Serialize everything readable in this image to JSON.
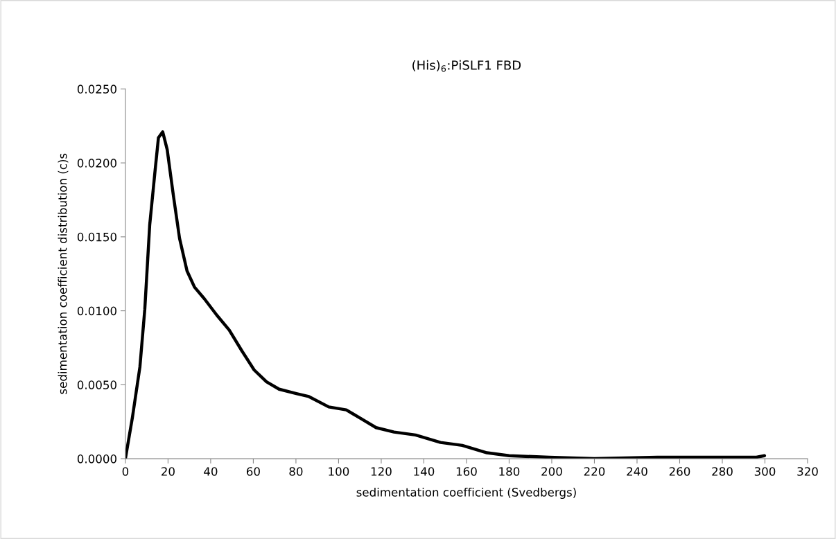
{
  "chart_data": {
    "type": "line",
    "title": "(His)$_{6}$:PiSLF1 FBD",
    "xlabel": "sedimentation coefficient (Svedbergs)",
    "ylabel": "sedimentation coefficient distribution (c)s",
    "series": [
      {
        "color": "#000000",
        "x": [
          0,
          3.3,
          6.8,
          9.1,
          11.4,
          13.8,
          15.5,
          17.5,
          19.6,
          22.5,
          25.4,
          28.9,
          32.4,
          37.1,
          42.9,
          48.7,
          54.6,
          60.4,
          66.2,
          72.1,
          80.2,
          86.1,
          95.4,
          103.6,
          110.6,
          117.6,
          126,
          136.1,
          147.8,
          158,
          169.6,
          180,
          198.7,
          220,
          249.6,
          278.7,
          296,
          299.8
        ],
        "values": [
          0,
          0.0028,
          0.0062,
          0.0101,
          0.0158,
          0.0193,
          0.0217,
          0.0221,
          0.0209,
          0.0178,
          0.0149,
          0.0127,
          0.0116,
          0.0108,
          0.0097,
          0.0087,
          0.0073,
          0.006,
          0.0052,
          0.0047,
          0.0044,
          0.0042,
          0.0035,
          0.0033,
          0.0027,
          0.0021,
          0.0018,
          0.0016,
          0.0011,
          0.0009,
          0.0004,
          0.0002,
          0.0001,
          0.0,
          0.0001,
          0.0001,
          0.0001,
          0.0002
        ]
      }
    ],
    "xlim": [
      0,
      320
    ],
    "xticks": [
      0,
      20,
      40,
      60,
      80,
      100,
      120,
      140,
      160,
      180,
      200,
      220,
      240,
      260,
      280,
      300,
      320
    ],
    "ylim": [
      0,
      0.025
    ],
    "yticks": [
      {
        "value": 0,
        "label": "0.0000"
      },
      {
        "value": 0.005,
        "label": "0.0050"
      },
      {
        "value": 0.01,
        "label": "0.0100"
      },
      {
        "value": 0.015,
        "label": "0.0150"
      },
      {
        "value": 0.02,
        "label": "0.0200"
      },
      {
        "value": 0.025,
        "label": "0.0250"
      }
    ],
    "grid": false,
    "legend": false,
    "marker": "none",
    "line_style": "solid"
  }
}
